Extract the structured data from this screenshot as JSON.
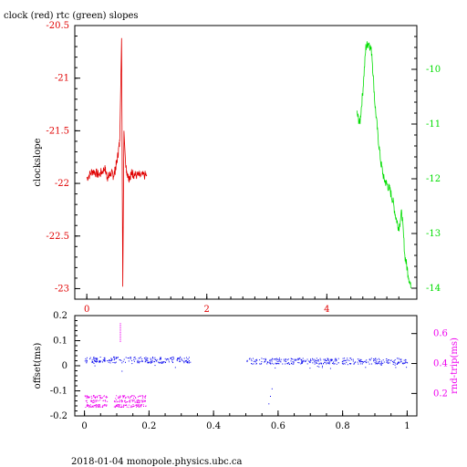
{
  "title": "clock (red) rtc (green) slopes",
  "footer": "2018-01-04 monopole.physics.ubc.ca",
  "colors": {
    "axis": "#000000",
    "clock": "#e00000",
    "rtc": "#00dd00",
    "offset": "#0000ee",
    "rtrip": "#ee00ee"
  },
  "chart_data": [
    {
      "type": "line",
      "ylabel": "clockslope",
      "x_ticks": [
        "0",
        "2",
        "4"
      ],
      "xlim": [
        -0.2,
        5.5
      ],
      "ylim": [
        -23.1,
        -20.5
      ],
      "y_ticks": [
        "-20.5",
        "-21",
        "-21.5",
        "-22",
        "-22.5",
        "-23"
      ],
      "y2lim": [
        -14.2,
        -9.2
      ],
      "y2_ticks": [
        "-10",
        "-11",
        "-12",
        "-13",
        "-14"
      ],
      "series": [
        {
          "axis": "left",
          "x": [
            0.0,
            0.1,
            0.2,
            0.3,
            0.35,
            0.4,
            0.45,
            0.5,
            0.55,
            0.58,
            0.6,
            0.62,
            0.65,
            0.7,
            0.75,
            0.8,
            0.9,
            1.0
          ],
          "y": [
            -21.95,
            -21.88,
            -21.92,
            -21.86,
            -21.95,
            -21.9,
            -21.93,
            -21.8,
            -21.6,
            -20.62,
            -22.98,
            -21.5,
            -21.85,
            -21.95,
            -21.9,
            -21.92,
            -21.93,
            -21.92
          ]
        },
        {
          "axis": "right",
          "x": [
            4.5,
            4.55,
            4.6,
            4.65,
            4.7,
            4.75,
            4.8,
            4.85,
            4.9,
            4.95,
            5.0,
            5.05,
            5.1,
            5.15,
            5.2,
            5.25,
            5.3,
            5.35,
            5.4
          ],
          "y": [
            -10.8,
            -11.0,
            -10.4,
            -9.6,
            -9.5,
            -9.7,
            -10.6,
            -11.2,
            -11.7,
            -12.0,
            -12.1,
            -12.2,
            -12.4,
            -12.7,
            -12.9,
            -12.6,
            -13.4,
            -13.7,
            -14.0
          ]
        }
      ]
    },
    {
      "type": "scatter",
      "ylabel": "offset(ms)",
      "y2label": "rnd-trip(ms)",
      "xlim": [
        -0.03,
        1.03
      ],
      "x_ticks": [
        "0",
        "0.2",
        "0.4",
        "0.6",
        "0.8",
        "1"
      ],
      "ylim": [
        -0.2,
        0.2
      ],
      "y_ticks": [
        "0.2",
        "0.1",
        "0",
        "-0.1",
        "-0.2"
      ],
      "y2lim": [
        0.05,
        0.72
      ],
      "y2_ticks": [
        "0.6",
        "0.4",
        "0.2"
      ],
      "series": [
        {
          "axis": "left",
          "segments": [
            {
              "x": [
                0.0,
                0.33
              ],
              "y_center": 0.025,
              "y_spread": 0.012
            },
            {
              "x": [
                0.5,
                1.0
              ],
              "y_center": 0.02,
              "y_spread": 0.012
            }
          ],
          "dips": [
            {
              "x": 0.115,
              "y": -0.02
            },
            {
              "x": 0.57,
              "y": -0.15
            },
            {
              "x": 0.575,
              "y": -0.12
            },
            {
              "x": 0.58,
              "y": -0.09
            }
          ]
        },
        {
          "axis": "right",
          "segments": [
            {
              "x": [
                0.0,
                0.07
              ],
              "y_center": 0.15,
              "y_spread": 0.04
            },
            {
              "x": [
                0.09,
                0.19
              ],
              "y_center": 0.15,
              "y_spread": 0.04
            }
          ],
          "spike": {
            "x": 0.11,
            "y": [
              0.55,
              0.68
            ]
          }
        }
      ]
    }
  ]
}
